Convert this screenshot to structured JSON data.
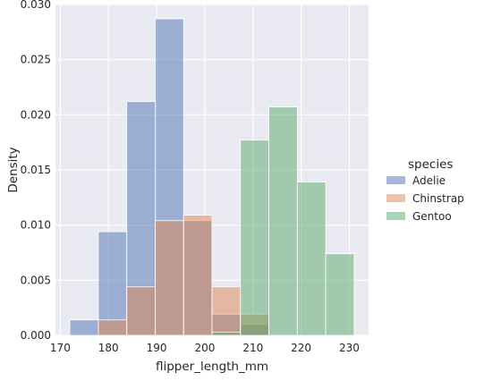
{
  "chart_data": {
    "type": "histogram",
    "title": "",
    "xlabel": "flipper_length_mm",
    "ylabel": "Density",
    "xlim": [
      169,
      234
    ],
    "ylim": [
      0,
      0.03
    ],
    "x_ticks": [
      170,
      180,
      190,
      200,
      210,
      220,
      230
    ],
    "y_ticks": [
      0.0,
      0.005,
      0.01,
      0.015,
      0.02,
      0.025,
      0.03
    ],
    "y_tick_labels": [
      "0.000",
      "0.005",
      "0.010",
      "0.015",
      "0.020",
      "0.025",
      "0.030"
    ],
    "grid": true,
    "background": "#eaeaf2",
    "bin_edges": [
      172,
      177.9,
      183.8,
      189.7,
      195.6,
      201.5,
      207.4,
      213.3,
      219.2,
      225.1,
      231
    ],
    "legend": {
      "title": "species",
      "placement": "right"
    },
    "series": [
      {
        "name": "Adelie",
        "color": "#4c72b0",
        "values": [
          0.0014,
          0.0094,
          0.0212,
          0.0287,
          0.0104,
          0.0019,
          0.001,
          0,
          0,
          0
        ]
      },
      {
        "name": "Chinstrap",
        "color": "#dd8452",
        "values": [
          0,
          0.0014,
          0.0044,
          0.0104,
          0.0109,
          0.0044,
          0.0019,
          0,
          0,
          0
        ]
      },
      {
        "name": "Gentoo",
        "color": "#55a868",
        "values": [
          0,
          0,
          0,
          0,
          0,
          0.0003,
          0.0177,
          0.0207,
          0.0139,
          0.0074
        ]
      }
    ]
  }
}
